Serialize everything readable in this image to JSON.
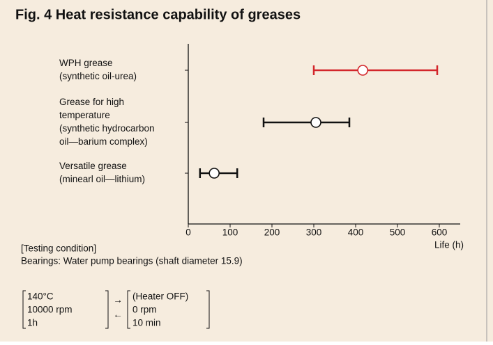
{
  "chart_data": {
    "type": "range",
    "title": "Fig. 4  Heat resistance capability of greases",
    "categories": [
      [
        "WPH grease",
        "(synthetic oil-urea)"
      ],
      [
        "Grease for high",
        "temperature",
        "(synthetic hydrocarbon",
        "oil—barium complex)"
      ],
      [
        "Versatile grease",
        "(minearl oil—lithium)"
      ]
    ],
    "values": [
      417,
      305,
      62
    ],
    "low": [
      300,
      180,
      28
    ],
    "high": [
      595,
      385,
      117
    ],
    "colors": [
      "#d3262b",
      "#111111",
      "#111111"
    ],
    "xlim": [
      0,
      650
    ],
    "xticks": [
      0,
      100,
      200,
      300,
      400,
      500,
      600
    ],
    "xlabel": "Life (h)",
    "notes": {
      "heading": "[Testing condition]",
      "bearings": "Bearings: Water pump bearings (shaft diameter 15.9)",
      "on": [
        "140°C",
        "10000 rpm",
        "1h"
      ],
      "forward": "→",
      "back": "←",
      "off": [
        "(Heater OFF)",
        "0 rpm",
        "10 min"
      ]
    }
  }
}
